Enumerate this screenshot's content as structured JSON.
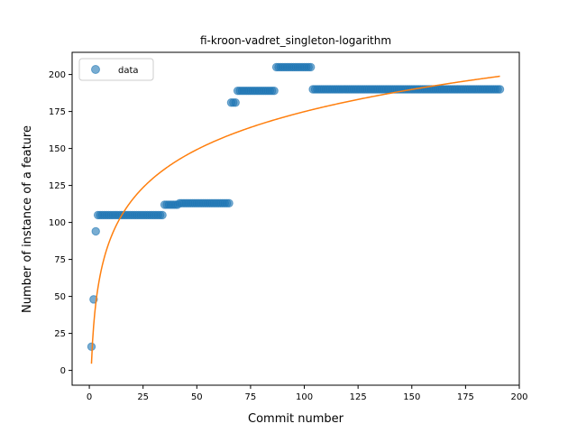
{
  "chart_data": {
    "type": "scatter",
    "title": "fi-kroon-vadret_singleton-logarithm",
    "xlabel": "Commit number",
    "ylabel": "Number of instance of a feature",
    "xlim": [
      -8,
      200
    ],
    "ylim": [
      -10,
      215
    ],
    "xticks": [
      0,
      25,
      50,
      75,
      100,
      125,
      150,
      175,
      200
    ],
    "yticks": [
      0,
      25,
      50,
      75,
      100,
      125,
      150,
      175,
      200
    ],
    "grid": false,
    "legend": {
      "placement": "top-left",
      "entries": [
        "data"
      ]
    },
    "colors": {
      "data": "#1f77b4",
      "fit": "#ff7f0e"
    },
    "series": [
      {
        "name": "data",
        "style": "markers",
        "segments": [
          {
            "x_start": 1,
            "x_end": 1,
            "y": 16
          },
          {
            "x_start": 2,
            "x_end": 2,
            "y": 48
          },
          {
            "x_start": 3,
            "x_end": 3,
            "y": 94
          },
          {
            "x_start": 4,
            "x_end": 34,
            "y": 105
          },
          {
            "x_start": 35,
            "x_end": 41,
            "y": 112
          },
          {
            "x_start": 42,
            "x_end": 65,
            "y": 113
          },
          {
            "x_start": 66,
            "x_end": 68,
            "y": 181
          },
          {
            "x_start": 69,
            "x_end": 86,
            "y": 189
          },
          {
            "x_start": 87,
            "x_end": 103,
            "y": 205
          },
          {
            "x_start": 104,
            "x_end": 191,
            "y": 190
          }
        ]
      },
      {
        "name": "",
        "style": "line",
        "fit": {
          "model": "logarithmic",
          "a": 4.5,
          "b": 37.0,
          "x_from": 1,
          "x_to": 191
        }
      }
    ]
  }
}
